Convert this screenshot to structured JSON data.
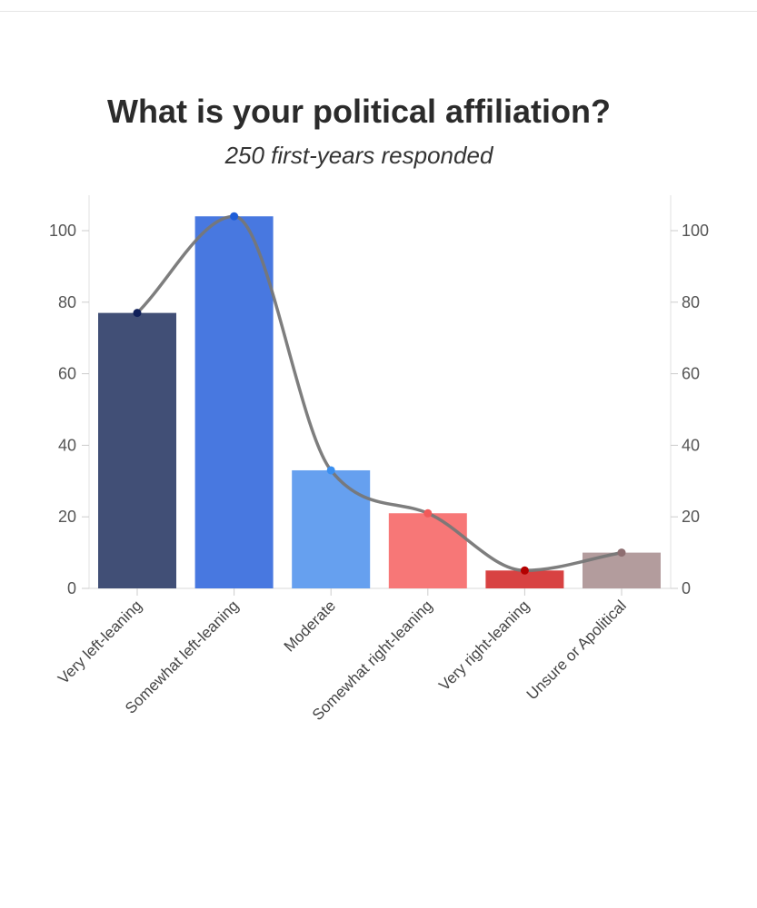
{
  "chart_data": {
    "type": "bar",
    "title": "What is your political affiliation?",
    "subtitle": "250 first-years responded",
    "categories": [
      "Very left-leaning",
      "Somewhat left-leaning",
      "Moderate",
      "Somewhat right-leaning",
      "Very right-leaning",
      "Unsure or Apolitical"
    ],
    "values": [
      77,
      104,
      33,
      21,
      5,
      10
    ],
    "bar_colors": [
      "#414f76",
      "#4878e0",
      "#66a0ef",
      "#f77777",
      "#d84242",
      "#b39c9d"
    ],
    "marker_colors": [
      "#10205a",
      "#1f5ed8",
      "#3a8ff0",
      "#f15a5a",
      "#b40000",
      "#8e6e71"
    ],
    "overlay_line": {
      "type": "smooth-line",
      "color": "#777777",
      "values": [
        77,
        104,
        33,
        21,
        5,
        10
      ]
    },
    "y_ticks": [
      0,
      20,
      40,
      60,
      80,
      100
    ],
    "ylim": [
      0,
      110
    ],
    "xlabel": "",
    "ylabel": "",
    "secondary_axis": true,
    "grid": false
  }
}
